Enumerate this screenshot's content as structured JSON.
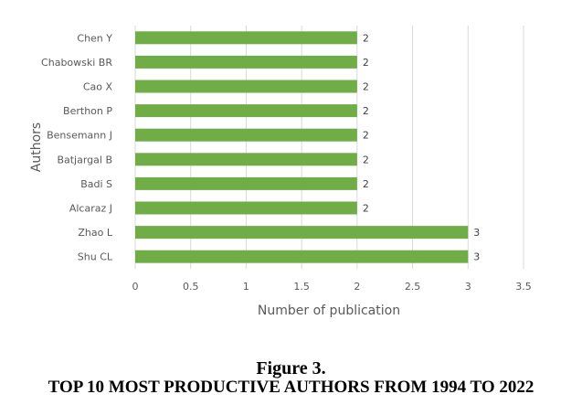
{
  "chart_data": {
    "type": "bar",
    "orientation": "horizontal",
    "categories": [
      "Chen Y",
      "Chabowski BR",
      "Cao X",
      "Berthon P",
      "Bensemann J",
      "Batjargal B",
      "Badi S",
      "Alcaraz J",
      "Zhao L",
      "Shu CL"
    ],
    "values": [
      2,
      2,
      2,
      2,
      2,
      2,
      2,
      2,
      3,
      3
    ],
    "xlabel": "Number of publication",
    "ylabel": "Authors",
    "xlim": [
      0,
      3.5
    ],
    "xticks": [
      0,
      0.5,
      1,
      1.5,
      2,
      2.5,
      3,
      3.5
    ],
    "xtick_labels": [
      "0",
      "0.5",
      "1",
      "1.5",
      "2",
      "2.5",
      "3",
      "3.5"
    ],
    "grid": "vertical",
    "legend": "none",
    "bar_color": "#70AD47",
    "data_labels": true
  },
  "caption": {
    "number": "Figure 3.",
    "title": "TOP 10 MOST PRODUCTIVE AUTHORS FROM 1994 TO 2022"
  }
}
